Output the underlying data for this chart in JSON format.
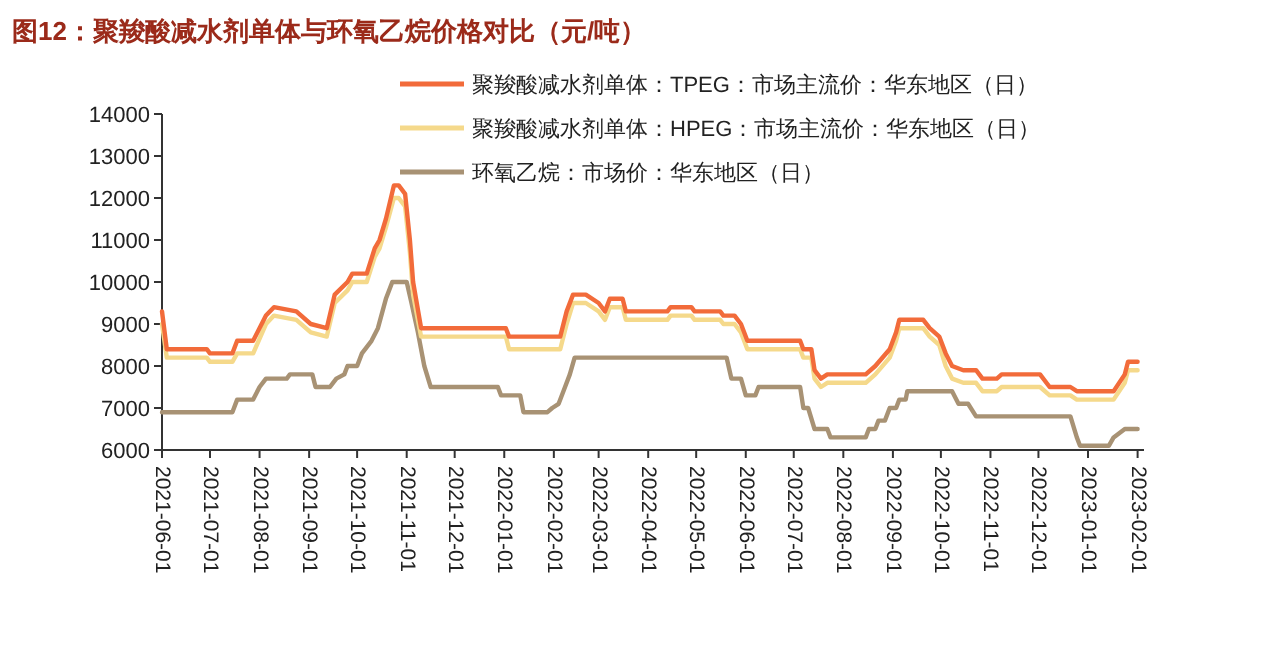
{
  "chart_data": {
    "type": "line",
    "title": "图12：聚羧酸减水剂单体与环氧乙烷价格对比（元/吨）",
    "xlim": [
      "2021-06-01",
      "2023-02-05"
    ],
    "ylim": [
      6000,
      14000
    ],
    "yticks": [
      6000,
      7000,
      8000,
      9000,
      10000,
      11000,
      12000,
      13000,
      14000
    ],
    "xticks": [
      "2021-06-01",
      "2021-07-01",
      "2021-08-01",
      "2021-09-01",
      "2021-10-01",
      "2021-11-01",
      "2021-12-01",
      "2022-01-01",
      "2022-02-01",
      "2022-03-01",
      "2022-04-01",
      "2022-05-01",
      "2022-06-01",
      "2022-07-01",
      "2022-08-01",
      "2022-09-01",
      "2022-10-01",
      "2022-11-01",
      "2022-12-01",
      "2023-01-01",
      "2023-02-01"
    ],
    "legend": "top",
    "series": [
      {
        "name": "聚羧酸减水剂单体：TPEG：市场主流价：华东地区（日）",
        "color": "#f26b3a",
        "x": [
          "2021-06-01",
          "2021-06-04",
          "2021-06-29",
          "2021-07-01",
          "2021-07-15",
          "2021-07-18",
          "2021-07-28",
          "2021-08-05",
          "2021-08-10",
          "2021-08-24",
          "2021-09-02",
          "2021-09-12",
          "2021-09-17",
          "2021-09-25",
          "2021-09-28",
          "2021-10-07",
          "2021-10-12",
          "2021-10-15",
          "2021-10-19",
          "2021-10-24",
          "2021-10-27",
          "2021-10-31",
          "2021-11-03",
          "2021-11-05",
          "2021-11-10",
          "2022-01-02",
          "2022-01-04",
          "2022-02-05",
          "2022-02-09",
          "2022-02-13",
          "2022-02-21",
          "2022-03-01",
          "2022-03-05",
          "2022-03-08",
          "2022-03-16",
          "2022-03-18",
          "2022-04-13",
          "2022-04-15",
          "2022-04-28",
          "2022-04-30",
          "2022-05-16",
          "2022-05-18",
          "2022-05-25",
          "2022-05-29",
          "2022-06-02",
          "2022-07-05",
          "2022-07-07",
          "2022-07-12",
          "2022-07-14",
          "2022-07-18",
          "2022-07-22",
          "2022-08-15",
          "2022-08-21",
          "2022-08-30",
          "2022-09-03",
          "2022-09-05",
          "2022-09-20",
          "2022-09-24",
          "2022-09-30",
          "2022-10-04",
          "2022-10-08",
          "2022-10-15",
          "2022-10-23",
          "2022-10-27",
          "2022-11-05",
          "2022-11-08",
          "2022-11-20",
          "2022-12-02",
          "2022-12-08",
          "2022-12-21",
          "2022-12-25",
          "2023-01-17",
          "2023-01-24",
          "2023-01-26",
          "2023-02-01"
        ],
        "values": [
          9300,
          8400,
          8400,
          8300,
          8300,
          8600,
          8600,
          9200,
          9400,
          9300,
          9000,
          8900,
          9700,
          10000,
          10200,
          10200,
          10800,
          11000,
          11500,
          12300,
          12300,
          12100,
          11000,
          10000,
          8900,
          8900,
          8700,
          8700,
          9300,
          9700,
          9700,
          9500,
          9300,
          9600,
          9600,
          9300,
          9300,
          9400,
          9400,
          9300,
          9300,
          9200,
          9200,
          9000,
          8600,
          8600,
          8400,
          8400,
          7900,
          7700,
          7800,
          7800,
          8000,
          8400,
          8800,
          9100,
          9100,
          8900,
          8700,
          8300,
          8000,
          7900,
          7900,
          7700,
          7700,
          7800,
          7800,
          7800,
          7500,
          7500,
          7400,
          7400,
          7800,
          8100,
          8100
        ]
      },
      {
        "name": "聚羧酸减水剂单体：HPEG：市场主流价：华东地区（日）",
        "color": "#f5d98b",
        "x": [
          "2021-06-01",
          "2021-06-04",
          "2021-06-29",
          "2021-07-01",
          "2021-07-15",
          "2021-07-18",
          "2021-07-28",
          "2021-08-05",
          "2021-08-10",
          "2021-08-24",
          "2021-09-02",
          "2021-09-12",
          "2021-09-17",
          "2021-09-25",
          "2021-09-28",
          "2021-10-07",
          "2021-10-12",
          "2021-10-15",
          "2021-10-19",
          "2021-10-24",
          "2021-10-27",
          "2021-10-31",
          "2021-11-03",
          "2021-11-05",
          "2021-11-10",
          "2022-01-02",
          "2022-01-04",
          "2022-02-05",
          "2022-02-09",
          "2022-02-13",
          "2022-02-21",
          "2022-03-01",
          "2022-03-05",
          "2022-03-08",
          "2022-03-16",
          "2022-03-18",
          "2022-04-13",
          "2022-04-15",
          "2022-04-28",
          "2022-04-30",
          "2022-05-16",
          "2022-05-18",
          "2022-05-25",
          "2022-05-29",
          "2022-06-02",
          "2022-07-05",
          "2022-07-07",
          "2022-07-12",
          "2022-07-14",
          "2022-07-18",
          "2022-07-22",
          "2022-08-15",
          "2022-08-21",
          "2022-08-30",
          "2022-09-03",
          "2022-09-05",
          "2022-09-20",
          "2022-09-24",
          "2022-09-30",
          "2022-10-04",
          "2022-10-08",
          "2022-10-15",
          "2022-10-23",
          "2022-10-27",
          "2022-11-05",
          "2022-11-08",
          "2022-11-20",
          "2022-12-02",
          "2022-12-08",
          "2022-12-21",
          "2022-12-25",
          "2023-01-17",
          "2023-01-24",
          "2023-01-26",
          "2023-02-01"
        ],
        "values": [
          9000,
          8200,
          8200,
          8100,
          8100,
          8300,
          8300,
          9000,
          9200,
          9100,
          8800,
          8700,
          9500,
          9800,
          10000,
          10000,
          10600,
          10800,
          11300,
          12000,
          12000,
          11800,
          10700,
          9700,
          8700,
          8700,
          8400,
          8400,
          9000,
          9500,
          9500,
          9300,
          9100,
          9400,
          9400,
          9100,
          9100,
          9200,
          9200,
          9100,
          9100,
          9000,
          9000,
          8800,
          8400,
          8400,
          8200,
          8200,
          7700,
          7500,
          7600,
          7600,
          7800,
          8200,
          8600,
          8900,
          8900,
          8700,
          8500,
          8000,
          7700,
          7600,
          7600,
          7400,
          7400,
          7500,
          7500,
          7500,
          7300,
          7300,
          7200,
          7200,
          7600,
          7900,
          7900
        ]
      },
      {
        "name": "环氧乙烷：市场价：华东地区（日）",
        "color": "#a89274",
        "x": [
          "2021-06-01",
          "2021-07-15",
          "2021-07-18",
          "2021-07-28",
          "2021-08-01",
          "2021-08-05",
          "2021-08-18",
          "2021-08-20",
          "2021-09-03",
          "2021-09-05",
          "2021-09-14",
          "2021-09-18",
          "2021-09-23",
          "2021-09-25",
          "2021-10-01",
          "2021-10-04",
          "2021-10-10",
          "2021-10-14",
          "2021-10-19",
          "2021-10-23",
          "2021-11-01",
          "2021-11-04",
          "2021-11-08",
          "2021-11-12",
          "2021-11-16",
          "2021-12-28",
          "2021-12-30",
          "2022-01-11",
          "2022-01-13",
          "2022-01-28",
          "2022-01-31",
          "2022-02-04",
          "2022-02-08",
          "2022-02-11",
          "2022-02-14",
          "2022-05-20",
          "2022-05-23",
          "2022-05-29",
          "2022-06-01",
          "2022-06-07",
          "2022-06-09",
          "2022-07-05",
          "2022-07-07",
          "2022-07-10",
          "2022-07-14",
          "2022-07-22",
          "2022-07-24",
          "2022-08-15",
          "2022-08-17",
          "2022-08-21",
          "2022-08-23",
          "2022-08-27",
          "2022-08-30",
          "2022-09-03",
          "2022-09-05",
          "2022-09-09",
          "2022-09-10",
          "2022-10-08",
          "2022-10-12",
          "2022-10-18",
          "2022-10-23",
          "2022-12-21",
          "2022-12-25",
          "2022-12-27",
          "2023-01-14",
          "2023-01-17",
          "2023-01-24",
          "2023-02-01"
        ],
        "values": [
          6900,
          6900,
          7200,
          7200,
          7500,
          7700,
          7700,
          7800,
          7800,
          7500,
          7500,
          7700,
          7800,
          8000,
          8000,
          8300,
          8600,
          8900,
          9600,
          10000,
          10000,
          9500,
          8800,
          8000,
          7500,
          7500,
          7300,
          7300,
          6900,
          6900,
          7000,
          7100,
          7500,
          7800,
          8200,
          8200,
          7700,
          7700,
          7300,
          7300,
          7500,
          7500,
          7000,
          7000,
          6500,
          6500,
          6300,
          6300,
          6500,
          6500,
          6700,
          6700,
          7000,
          7000,
          7200,
          7200,
          7400,
          7400,
          7100,
          7100,
          6800,
          6800,
          6300,
          6100,
          6100,
          6300,
          6500,
          6500
        ]
      }
    ]
  }
}
